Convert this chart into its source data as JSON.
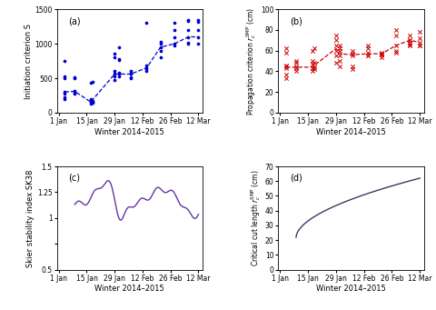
{
  "title_a": "(a)",
  "title_b": "(b)",
  "title_c": "(c)",
  "title_d": "(d)",
  "xlabel": "Winter 2014–2015",
  "ylabel_a": "Initiation criterion S",
  "ylabel_b": "Propagation criterion $r_c^{SMP}$ (cm)",
  "ylabel_c": "Skier stability index SK38",
  "ylabel_d": "Critical cut length $r_c^{SMP}$ (cm)",
  "color_a": "#0000CC",
  "color_b": "#CC0000",
  "color_c": "#6633AA",
  "color_d": "#443366",
  "ylim_a": [
    0,
    1500
  ],
  "ylim_b": [
    0,
    100
  ],
  "ylim_c": [
    0.5,
    1.5
  ],
  "ylim_d": [
    0,
    70
  ],
  "panel_a_scatter": {
    "days": [
      3,
      3,
      3,
      3,
      3,
      3,
      3,
      8,
      8,
      8,
      8,
      8,
      16,
      16,
      16,
      16,
      16,
      17,
      17,
      17,
      17,
      28,
      28,
      28,
      28,
      28,
      28,
      30,
      30,
      30,
      30,
      30,
      30,
      36,
      36,
      36,
      36,
      36,
      44,
      44,
      44,
      44,
      44,
      51,
      51,
      51,
      51,
      51,
      58,
      58,
      58,
      58,
      58,
      65,
      65,
      65,
      65,
      65,
      65,
      70,
      70,
      70,
      70,
      70
    ],
    "values": [
      200,
      220,
      280,
      300,
      520,
      500,
      750,
      280,
      290,
      320,
      500,
      510,
      130,
      155,
      170,
      200,
      430,
      140,
      155,
      170,
      450,
      480,
      530,
      560,
      600,
      800,
      860,
      530,
      560,
      580,
      760,
      780,
      950,
      560,
      570,
      600,
      500,
      510,
      650,
      640,
      600,
      680,
      1300,
      900,
      950,
      1000,
      800,
      1030,
      980,
      1000,
      1100,
      1200,
      1300,
      1000,
      1010,
      1100,
      1200,
      1330,
      1350,
      1000,
      1100,
      1200,
      1350,
      1320
    ],
    "median_days": [
      3,
      8,
      16,
      28,
      30,
      36,
      44,
      51,
      58,
      65,
      70
    ],
    "median_values": [
      300,
      310,
      155,
      560,
      560,
      560,
      650,
      950,
      1000,
      1100,
      1100
    ]
  },
  "panel_b_scatter": {
    "days": [
      3,
      3,
      3,
      3,
      3,
      3,
      3,
      8,
      8,
      8,
      8,
      8,
      16,
      16,
      16,
      16,
      16,
      17,
      17,
      17,
      17,
      28,
      28,
      28,
      28,
      28,
      28,
      30,
      30,
      30,
      30,
      30,
      30,
      36,
      36,
      36,
      36,
      36,
      44,
      44,
      44,
      44,
      44,
      51,
      51,
      51,
      51,
      51,
      58,
      58,
      58,
      58,
      58,
      65,
      65,
      65,
      65,
      65,
      65,
      70,
      70,
      70,
      70,
      70
    ],
    "values": [
      33,
      37,
      43,
      46,
      58,
      62,
      45,
      40,
      43,
      45,
      48,
      50,
      40,
      43,
      47,
      50,
      60,
      42,
      44,
      48,
      62,
      60,
      65,
      70,
      75,
      55,
      48,
      60,
      62,
      65,
      55,
      50,
      45,
      55,
      57,
      60,
      45,
      42,
      55,
      55,
      58,
      62,
      65,
      56,
      57,
      58,
      56,
      54,
      58,
      60,
      65,
      75,
      80,
      65,
      70,
      75,
      70,
      68,
      66,
      65,
      68,
      72,
      65,
      78
    ],
    "median_days": [
      3,
      8,
      16,
      28,
      30,
      36,
      44,
      51,
      58,
      65,
      70
    ],
    "median_values": [
      44,
      44,
      44,
      62,
      57,
      56,
      57,
      57,
      65,
      70,
      68
    ]
  },
  "xtick_labels": [
    "1 Jan",
    "15 Jan",
    "29 Jan",
    "12 Feb",
    "26 Feb",
    "12 Mar"
  ],
  "xtick_days": [
    0,
    14,
    28,
    42,
    56,
    70
  ],
  "fig_bg": "#f0f0f0"
}
